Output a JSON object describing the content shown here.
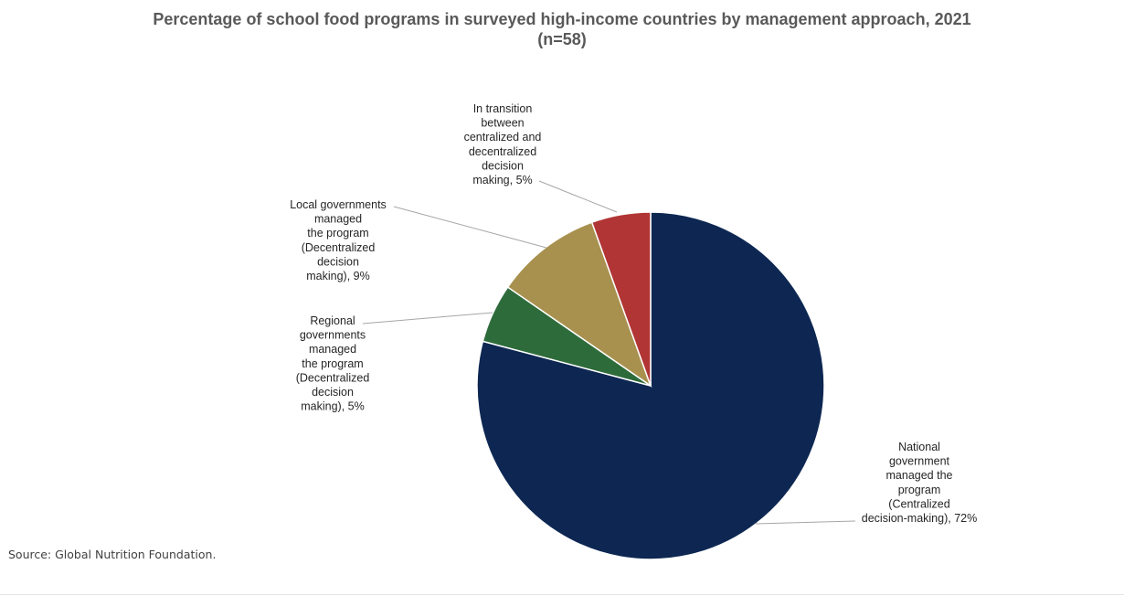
{
  "chart_data": {
    "type": "pie",
    "title_lines": [
      "Percentage of school food programs in surveyed high-income countries by management approach, 2021",
      "(n=58)"
    ],
    "slices": [
      {
        "label": "National government managed the program (Centralized decision-making), 72%",
        "label_lines": [
          "National",
          "government",
          "managed the",
          "program",
          "(Centralized",
          "decision-making), 72%"
        ],
        "value": 72,
        "color": "#0d2752"
      },
      {
        "label": "Regional governments managed the program (Decentralized decision making), 5%",
        "label_lines": [
          "Regional",
          "governments",
          "managed",
          "the program",
          "(Decentralized",
          "decision",
          "making), 5%"
        ],
        "value": 5,
        "color": "#2e6b3b"
      },
      {
        "label": "Local governments managed the program (Decentralized decision making), 9%",
        "label_lines": [
          "Local governments",
          "managed",
          "the program",
          "(Decentralized",
          "decision",
          "making), 9%"
        ],
        "value": 9,
        "color": "#a8914f"
      },
      {
        "label": "In transition between centralized and decentralized decision making, 5%",
        "label_lines": [
          "In transition",
          "between",
          "centralized and",
          "decentralized",
          "decision",
          "making, 5%"
        ],
        "value": 5,
        "color": "#b13535"
      }
    ],
    "legend": "none"
  },
  "source": "Source: Global Nutrition Foundation."
}
